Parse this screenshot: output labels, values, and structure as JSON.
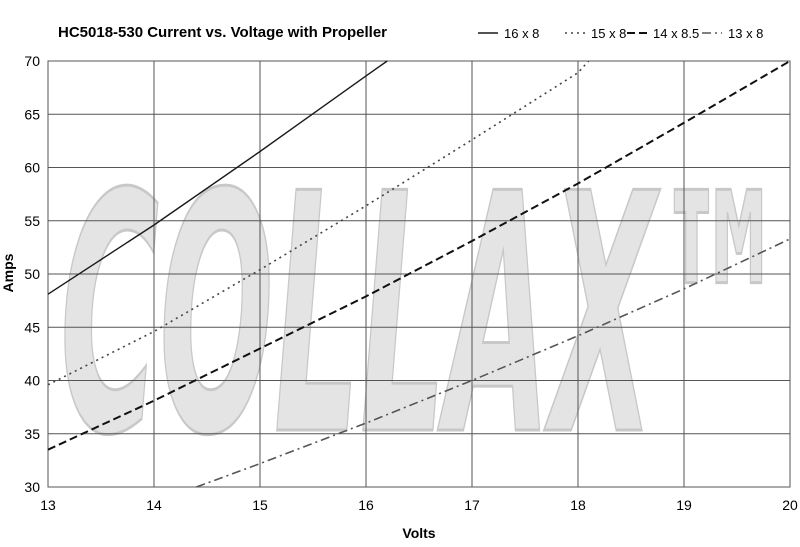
{
  "chart_data": {
    "type": "line",
    "title": "HC5018-530 Current vs. Voltage with Propeller",
    "xlabel": "Volts",
    "ylabel": "Amps",
    "xlim": [
      13,
      20
    ],
    "ylim": [
      30,
      70
    ],
    "x_ticks": [
      "13",
      "14",
      "15",
      "16",
      "17",
      "18",
      "19",
      "20"
    ],
    "y_ticks": [
      "30",
      "35",
      "40",
      "45",
      "50",
      "55",
      "60",
      "65",
      "70"
    ],
    "grid": true,
    "legend_position": "top-right",
    "watermark_text": "COLLAX™",
    "series": [
      {
        "name": "16 x 8",
        "style": "solid",
        "color": "#1a1a1a",
        "x": [
          13,
          14,
          15,
          16,
          16.2
        ],
        "y": [
          48.1,
          54.6,
          61.5,
          68.6,
          70
        ]
      },
      {
        "name": "15 x 8",
        "style": "dotted",
        "color": "#444444",
        "x": [
          13,
          14,
          15,
          16,
          17,
          18,
          18.1
        ],
        "y": [
          39.6,
          44.6,
          50.4,
          56.4,
          62.6,
          68.9,
          70
        ]
      },
      {
        "name": "14 x 8.5",
        "style": "dashed",
        "color": "#111111",
        "x": [
          13,
          14,
          15,
          16,
          17,
          18,
          19,
          20
        ],
        "y": [
          33.5,
          38.1,
          43.0,
          47.9,
          53.1,
          58.5,
          64.2,
          70
        ]
      },
      {
        "name": "13 x 8",
        "style": "dashdot",
        "color": "#555555",
        "x": [
          14.4,
          15,
          16,
          17,
          18,
          19,
          20
        ],
        "y": [
          30,
          32.2,
          36.0,
          40.0,
          44.2,
          48.6,
          53.3
        ]
      }
    ]
  }
}
